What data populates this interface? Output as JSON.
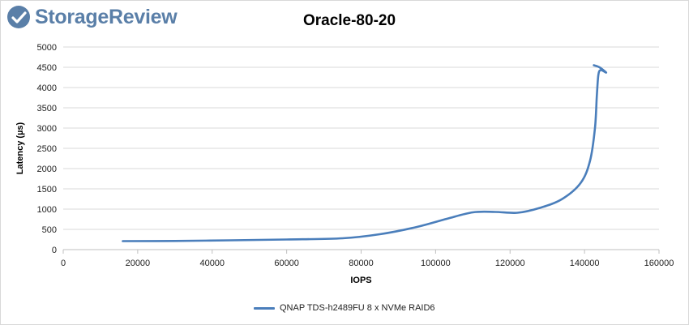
{
  "brand": {
    "name": "StorageReview",
    "color": "#5a7fa8"
  },
  "chart_data": {
    "type": "line",
    "title": "Oracle-80-20",
    "xlabel": "IOPS",
    "ylabel": "Latency (µs)",
    "xlim": [
      0,
      160000
    ],
    "ylim": [
      0,
      5000
    ],
    "x_ticks": [
      "0",
      "20000",
      "40000",
      "60000",
      "80000",
      "100000",
      "120000",
      "140000",
      "160000"
    ],
    "y_ticks": [
      "0",
      "500",
      "1000",
      "1500",
      "2000",
      "2500",
      "3000",
      "3500",
      "4000",
      "4500",
      "5000"
    ],
    "grid": "horizontal",
    "legend_position": "bottom",
    "series": [
      {
        "name": "QNAP TDS-h2489FU 8 x NVMe RAID6",
        "color": "#4a7ebb",
        "points": [
          [
            16000,
            210
          ],
          [
            30000,
            215
          ],
          [
            45000,
            230
          ],
          [
            60000,
            250
          ],
          [
            75000,
            280
          ],
          [
            85000,
            380
          ],
          [
            95000,
            560
          ],
          [
            103000,
            760
          ],
          [
            110000,
            920
          ],
          [
            116000,
            930
          ],
          [
            122000,
            910
          ],
          [
            128000,
            1030
          ],
          [
            134000,
            1250
          ],
          [
            139000,
            1650
          ],
          [
            141500,
            2200
          ],
          [
            142800,
            3000
          ],
          [
            143300,
            3800
          ],
          [
            143700,
            4300
          ],
          [
            144300,
            4430
          ],
          [
            145800,
            4370
          ],
          [
            144000,
            4500
          ],
          [
            142500,
            4550
          ]
        ]
      }
    ]
  }
}
